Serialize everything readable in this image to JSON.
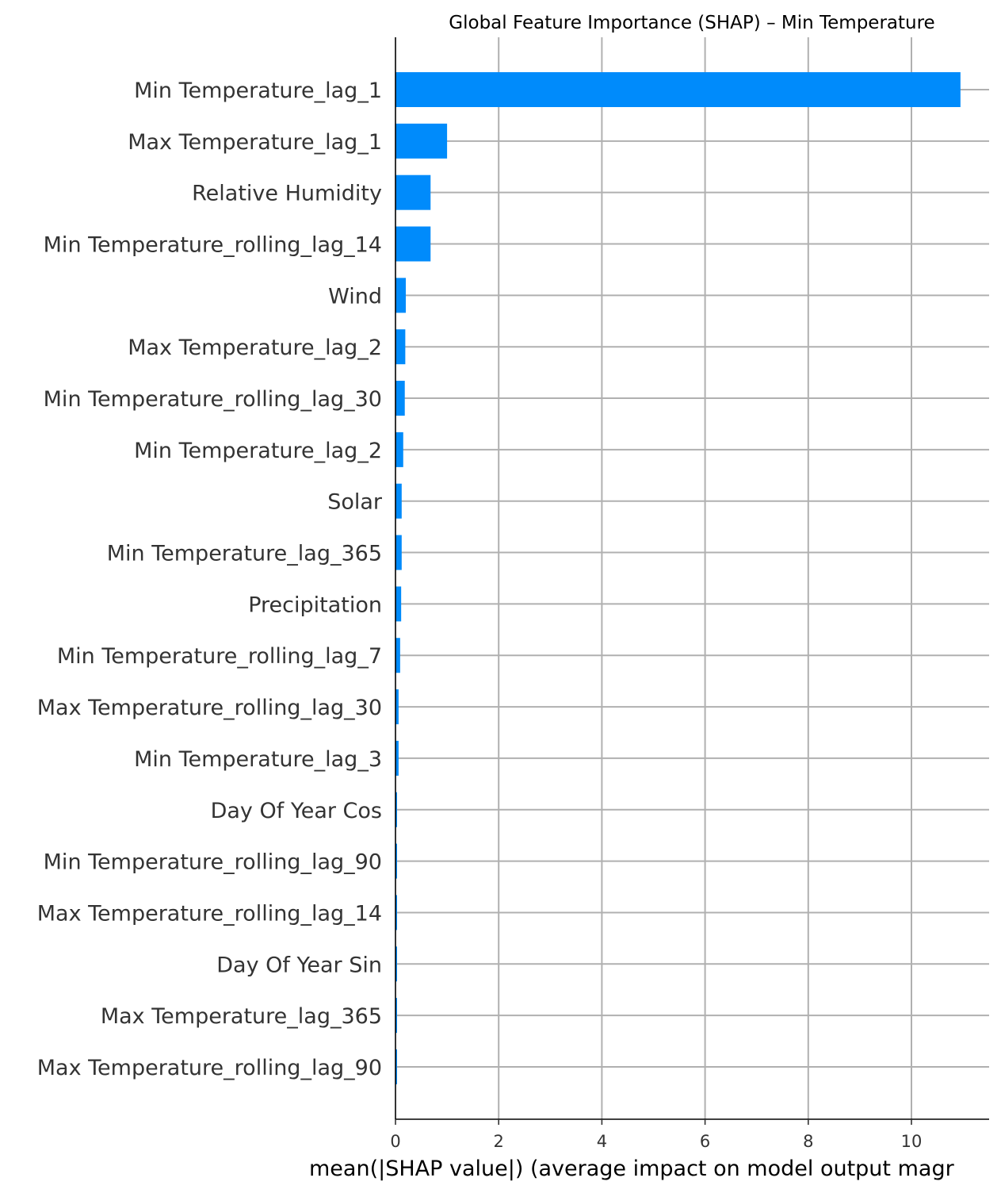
{
  "chart_data": {
    "type": "bar",
    "orientation": "horizontal",
    "title": "Global Feature Importance (SHAP) – Min Temperature",
    "xlabel": "mean(|SHAP value|) (average impact on model output magr",
    "ylabel": "",
    "xlim": [
      0,
      11.5
    ],
    "xticks": [
      "0",
      "2",
      "4",
      "6",
      "8",
      "10"
    ],
    "grid": true,
    "bar_color": "#008bfb",
    "categories": [
      "Min Temperature_lag_1",
      "Max Temperature_lag_1",
      "Relative Humidity",
      "Min Temperature_rolling_lag_14",
      "Wind",
      "Max Temperature_lag_2",
      "Min Temperature_rolling_lag_30",
      "Min Temperature_lag_2",
      "Solar",
      "Min Temperature_lag_365",
      "Precipitation",
      "Min Temperature_rolling_lag_7",
      "Max Temperature_rolling_lag_30",
      "Min Temperature_lag_3",
      "Day Of Year Cos",
      "Min Temperature_rolling_lag_90",
      "Max Temperature_rolling_lag_14",
      "Day Of Year Sin",
      "Max Temperature_lag_365",
      "Max Temperature_rolling_lag_90"
    ],
    "values": [
      10.95,
      1.0,
      0.68,
      0.68,
      0.2,
      0.19,
      0.18,
      0.15,
      0.12,
      0.12,
      0.11,
      0.09,
      0.06,
      0.06,
      0.03,
      0.03,
      0.03,
      0.03,
      0.02,
      0.02
    ]
  }
}
